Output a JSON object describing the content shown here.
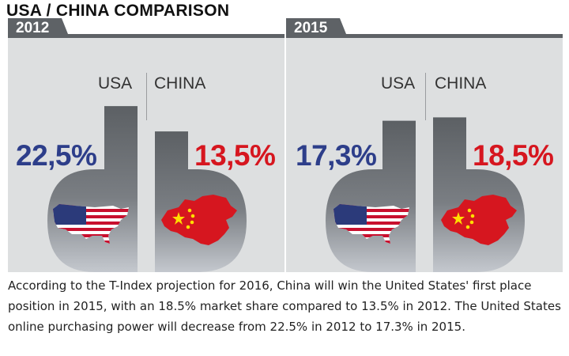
{
  "title": "USA / CHINA COMPARISON",
  "chart_data": {
    "type": "bar",
    "categories": [
      "USA",
      "CHINA"
    ],
    "panels": [
      {
        "year": "2012",
        "usa_label": "USA",
        "china_label": "CHINA",
        "usa_value": 22.5,
        "china_value": 13.5,
        "usa_text": "22,5%",
        "china_text": "13,5%"
      },
      {
        "year": "2015",
        "usa_label": "USA",
        "china_label": "CHINA",
        "usa_value": 17.3,
        "china_value": 18.5,
        "usa_text": "17,3%",
        "china_text": "18,5%"
      }
    ],
    "colors": {
      "usa": "#2d3e8a",
      "china": "#d6161f",
      "bar": "#5e6266"
    }
  },
  "caption": "According to the T-Index projection for 2016, China will win the United States' first place position in 2015, with an 18.5% market share compared to 13.5% in 2012. The United States online purchasing power will decrease from 22.5% in 2012 to 17.3% in 2015.",
  "icons": {
    "usa_flag": "usa-flag-map-icon",
    "china_flag": "china-flag-map-icon"
  }
}
